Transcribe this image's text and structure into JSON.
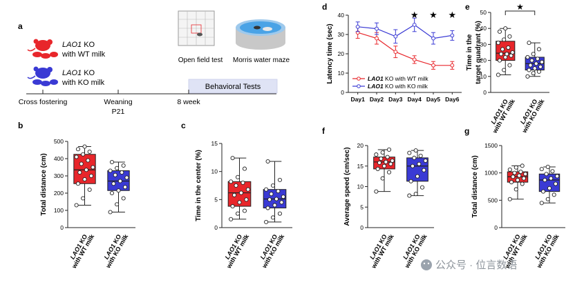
{
  "colors": {
    "wt": "#e8262b",
    "ko": "#3a3ad4",
    "axis": "#222222",
    "tl_bar": "#dfe3f5"
  },
  "panel_a": {
    "letter": "a",
    "group1": {
      "gene": "LAO1",
      "line1_suffix": " KO",
      "line2": "with WT milk"
    },
    "group2": {
      "gene": "LAO1",
      "line1_suffix": " KO",
      "line2": "with KO milk"
    },
    "open_field_label": "Open field test",
    "morris_label": "Morris water maze",
    "behavioral_label": "Behavioral Tests",
    "timeline": [
      {
        "label": "Cross fostering",
        "sub": ""
      },
      {
        "label": "Weaning",
        "sub": "P21"
      },
      {
        "label": "8 week",
        "sub": ""
      }
    ]
  },
  "chart_data": [
    {
      "id": "d",
      "letter": "d",
      "type": "line",
      "ylabel": "Latency time (sec)",
      "xlabel": "",
      "x": [
        "Day1",
        "Day2",
        "Day3",
        "Day4",
        "Day5",
        "Day6"
      ],
      "ylim": [
        0,
        40
      ],
      "yticks": [
        0,
        10,
        20,
        30,
        40
      ],
      "series": [
        {
          "name": "LAO1 KO with WT milk",
          "gene": "LAO1",
          "rest": " KO with WT milk",
          "color": "#e8262b",
          "values": [
            31,
            28,
            21,
            17,
            14,
            14
          ],
          "err": [
            3,
            3,
            3,
            2,
            2,
            2
          ]
        },
        {
          "name": "LAO1 KO with KO milk",
          "gene": "LAO1",
          "rest": " KO with KO milk",
          "color": "#3a3ad4",
          "values": [
            34,
            33,
            29,
            35,
            28,
            29.5
          ],
          "err": [
            2.5,
            3,
            3.5,
            3.5,
            3,
            2.5
          ]
        }
      ],
      "significance": [
        "Day4",
        "Day5",
        "Day6"
      ],
      "legend_position": "bottom-left"
    },
    {
      "id": "e",
      "letter": "e",
      "type": "box",
      "ylabel_lines": [
        "Time in the",
        "target quadrant (%)"
      ],
      "ylim": [
        0,
        50
      ],
      "yticks": [
        0,
        10,
        20,
        30,
        40,
        50
      ],
      "categories": [
        {
          "gene": "LAO1",
          "rest": " KO",
          "line2": "with WT milk"
        },
        {
          "gene": "LAO1",
          "rest": " KO",
          "line2": "with KO milk"
        }
      ],
      "significance": "★",
      "boxes": [
        {
          "color": "#e8262b",
          "min": 11,
          "q1": 20,
          "median": 24.5,
          "q3": 32,
          "max": 40,
          "points": [
            11,
            14,
            17,
            20,
            22,
            23,
            24,
            24,
            25,
            27,
            28,
            31,
            33,
            35,
            38,
            40
          ]
        },
        {
          "color": "#3a3ad4",
          "min": 10,
          "q1": 14,
          "median": 18,
          "q3": 22,
          "max": 31,
          "points": [
            10,
            12,
            13,
            14,
            15,
            16,
            17,
            18,
            19,
            20,
            21,
            22,
            24,
            27,
            31
          ]
        }
      ]
    },
    {
      "id": "b",
      "letter": "b",
      "type": "box",
      "ylabel_lines": [
        "Total distance (cm)"
      ],
      "ylim": [
        0,
        500
      ],
      "yticks": [
        0,
        100,
        200,
        300,
        400,
        500
      ],
      "categories": [
        {
          "gene": "LAO1",
          "rest": " KO",
          "line2": "with WT milk"
        },
        {
          "gene": "LAO1",
          "rest": " KO",
          "line2": "with KO milk"
        }
      ],
      "boxes": [
        {
          "color": "#e8262b",
          "min": 130,
          "q1": 255,
          "median": 335,
          "q3": 425,
          "max": 470,
          "points": [
            130,
            170,
            220,
            255,
            280,
            300,
            320,
            335,
            350,
            370,
            390,
            410,
            425,
            440,
            455,
            470
          ]
        },
        {
          "color": "#3a3ad4",
          "min": 90,
          "q1": 215,
          "median": 270,
          "q3": 330,
          "max": 380,
          "points": [
            90,
            135,
            170,
            200,
            215,
            235,
            255,
            270,
            290,
            305,
            320,
            330,
            345,
            360,
            380
          ]
        }
      ]
    },
    {
      "id": "c",
      "letter": "c",
      "type": "box",
      "ylabel_lines": [
        "Time in the center (%)"
      ],
      "ylim": [
        0,
        15
      ],
      "yticks": [
        0,
        5,
        10,
        15
      ],
      "categories": [
        {
          "gene": "LAO1",
          "rest": " KO",
          "line2": "with WT milk"
        },
        {
          "gene": "LAO1",
          "rest": " KO",
          "line2": "with KO milk"
        }
      ],
      "boxes": [
        {
          "color": "#e8262b",
          "min": 1.5,
          "q1": 3.8,
          "median": 6.2,
          "q3": 8.2,
          "max": 12.4,
          "points": [
            1.5,
            2.5,
            3,
            3.8,
            4.5,
            5,
            5.8,
            6.2,
            6.8,
            7.5,
            8,
            8.2,
            9,
            10.5,
            12.4
          ]
        },
        {
          "color": "#3a3ad4",
          "min": 1,
          "q1": 3.5,
          "median": 5.1,
          "q3": 6.8,
          "max": 11.8,
          "points": [
            1,
            1.8,
            2.5,
            3.5,
            4,
            4.5,
            5,
            5.1,
            5.5,
            6,
            6.5,
            6.8,
            7.5,
            8.5,
            11.8
          ]
        }
      ]
    },
    {
      "id": "f",
      "letter": "f",
      "type": "box",
      "ylabel_lines": [
        "Average speed (cm/sec)"
      ],
      "ylim": [
        0,
        20
      ],
      "yticks": [
        0,
        5,
        10,
        15,
        20
      ],
      "categories": [
        {
          "gene": "LAO1",
          "rest": " KO",
          "line2": "with WT milk"
        },
        {
          "gene": "LAO1",
          "rest": " KO",
          "line2": "with KO milk"
        }
      ],
      "boxes": [
        {
          "color": "#e8262b",
          "min": 8.8,
          "q1": 14.3,
          "median": 16,
          "q3": 17.2,
          "max": 19,
          "points": [
            8.8,
            12,
            13.5,
            14.3,
            15,
            15.5,
            15.8,
            16,
            16.3,
            16.8,
            17.2,
            17.8,
            18.3,
            19
          ]
        },
        {
          "color": "#3a3ad4",
          "min": 7.8,
          "q1": 11.3,
          "median": 15,
          "q3": 17,
          "max": 18.8,
          "points": [
            7.8,
            8.2,
            9.8,
            11.3,
            12.5,
            14,
            15,
            15.5,
            16.3,
            17,
            17.5,
            18.2,
            18.8
          ]
        }
      ]
    },
    {
      "id": "g",
      "letter": "g",
      "type": "box",
      "ylabel_lines": [
        "Total distance (cm)"
      ],
      "ylim": [
        0,
        1500
      ],
      "yticks": [
        0,
        500,
        1000,
        1500
      ],
      "categories": [
        {
          "gene": "LAO1",
          "rest": " KO",
          "line2": "with WT milk"
        },
        {
          "gene": "LAO1",
          "rest": " KO",
          "line2": "with KO milk"
        }
      ],
      "boxes": [
        {
          "color": "#e8262b",
          "min": 520,
          "q1": 830,
          "median": 930,
          "q3": 1020,
          "max": 1130,
          "points": [
            520,
            700,
            800,
            830,
            870,
            900,
            930,
            950,
            980,
            1000,
            1020,
            1060,
            1100,
            1130
          ]
        },
        {
          "color": "#3a3ad4",
          "min": 450,
          "q1": 660,
          "median": 870,
          "q3": 980,
          "max": 1110,
          "points": [
            450,
            520,
            600,
            660,
            720,
            800,
            870,
            900,
            940,
            980,
            1030,
            1070,
            1110
          ]
        }
      ]
    }
  ],
  "watermark": "公众号 · 位言数语"
}
